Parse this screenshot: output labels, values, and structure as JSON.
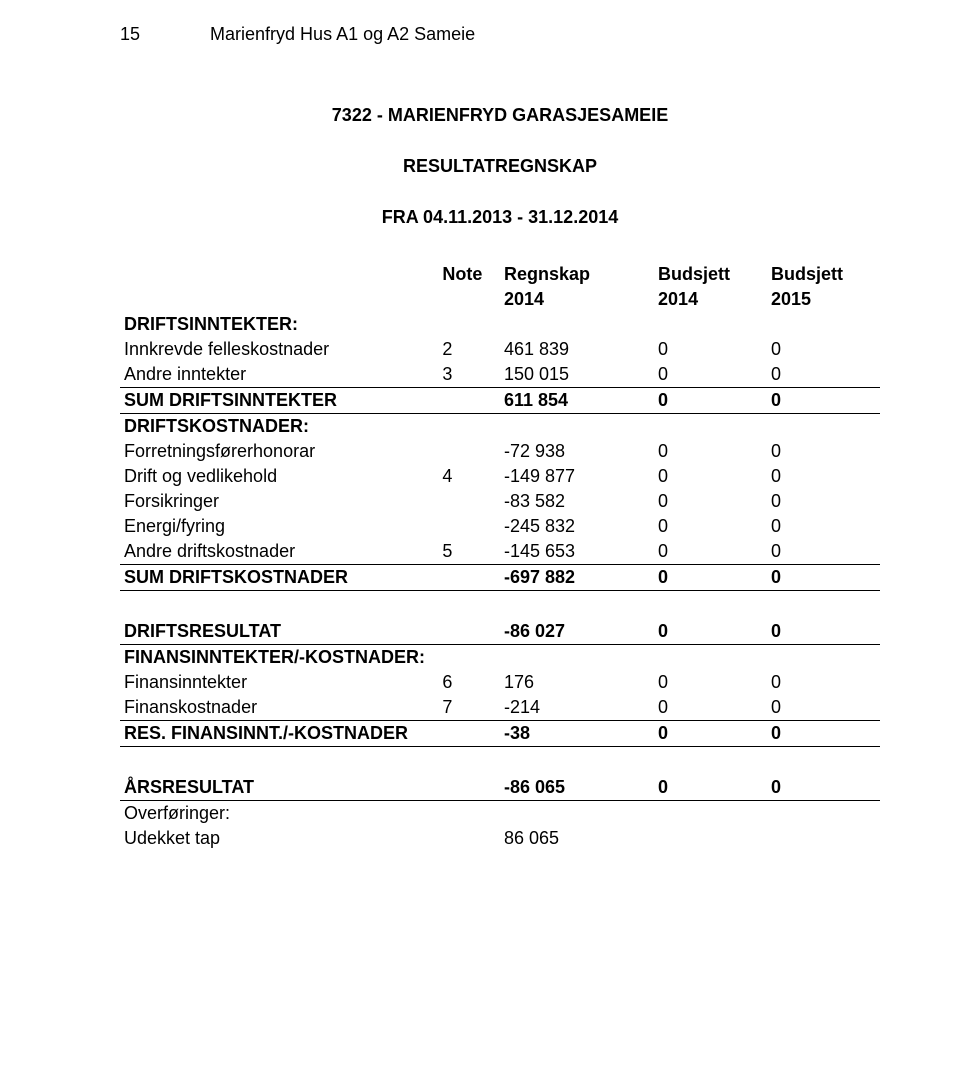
{
  "header": {
    "page_number": "15",
    "doc_title": "Marienfryd Hus A1 og A2 Sameie"
  },
  "title": {
    "main": "7322  -  MARIENFRYD GARASJESAMEIE",
    "sub": "RESULTATREGNSKAP",
    "period": "FRA 04.11.2013 - 31.12.2014"
  },
  "columns": {
    "note": "Note",
    "c1_top": "Regnskap",
    "c1_sub": "2014",
    "c2_top": "Budsjett",
    "c2_sub": "2014",
    "c3_top": "Budsjett",
    "c3_sub": "2015"
  },
  "sections": {
    "income": {
      "heading": "DRIFTSINNTEKTER:",
      "rows": [
        {
          "label": "Innkrevde felleskostnader",
          "note": "2",
          "a": "461 839",
          "b": "0",
          "c": "0"
        },
        {
          "label": "Andre inntekter",
          "note": "3",
          "a": "150 015",
          "b": "0",
          "c": "0"
        }
      ],
      "sum": {
        "label": "SUM DRIFTSINNTEKTER",
        "note": "",
        "a": "611 854",
        "b": "0",
        "c": "0"
      }
    },
    "costs": {
      "heading": "DRIFTSKOSTNADER:",
      "rows": [
        {
          "label": "Forretningsførerhonorar",
          "note": "",
          "a": "-72 938",
          "b": "0",
          "c": "0"
        },
        {
          "label": "Drift og vedlikehold",
          "note": "4",
          "a": "-149 877",
          "b": "0",
          "c": "0"
        },
        {
          "label": "Forsikringer",
          "note": "",
          "a": "-83 582",
          "b": "0",
          "c": "0"
        },
        {
          "label": "Energi/fyring",
          "note": "",
          "a": "-245 832",
          "b": "0",
          "c": "0"
        },
        {
          "label": "Andre driftskostnader",
          "note": "5",
          "a": "-145 653",
          "b": "0",
          "c": "0"
        }
      ],
      "sum": {
        "label": "SUM DRIFTSKOSTNADER",
        "note": "",
        "a": "-697 882",
        "b": "0",
        "c": "0"
      }
    },
    "op_result": {
      "label": "DRIFTSRESULTAT",
      "note": "",
      "a": "-86 027",
      "b": "0",
      "c": "0"
    },
    "fin": {
      "heading": "FINANSINNTEKTER/-KOSTNADER:",
      "rows": [
        {
          "label": "Finansinntekter",
          "note": "6",
          "a": "176",
          "b": "0",
          "c": "0"
        },
        {
          "label": "Finanskostnader",
          "note": "7",
          "a": "-214",
          "b": "0",
          "c": "0"
        }
      ],
      "sum": {
        "label": "RES. FINANSINNT./-KOSTNADER",
        "note": "",
        "a": "-38",
        "b": "0",
        "c": "0"
      }
    },
    "year_result": {
      "label": "ÅRSRESULTAT",
      "note": "",
      "a": "-86 065",
      "b": "0",
      "c": "0"
    },
    "transfers": {
      "heading": "Overføringer:",
      "rows": [
        {
          "label": "Udekket tap",
          "note": "",
          "a": "86 065",
          "b": "",
          "c": ""
        }
      ]
    }
  }
}
